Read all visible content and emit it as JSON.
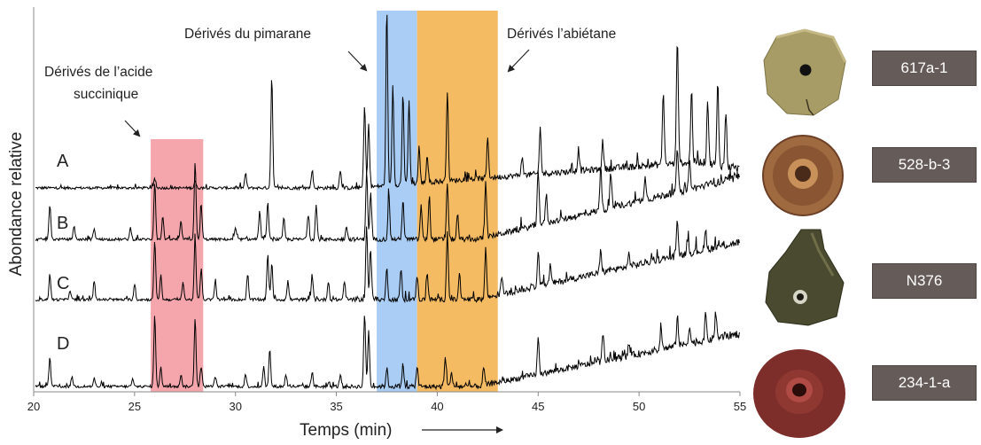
{
  "chart_data": {
    "type": "line",
    "title": "",
    "xlabel": "Temps (min)",
    "ylabel": "Abondance relative",
    "xlim": [
      20,
      55
    ],
    "x_ticks": [
      20,
      25,
      30,
      35,
      40,
      45,
      50,
      55
    ],
    "x_tick_labels": [
      "20",
      "25",
      "30",
      "35",
      "40",
      "45",
      "50",
      "55"
    ],
    "grid": false,
    "traces": [
      {
        "name": "A",
        "peaks": [
          [
            26.0,
            0.05
          ],
          [
            28.0,
            0.04
          ],
          [
            30.5,
            0.08
          ],
          [
            31.8,
            0.62
          ],
          [
            33.8,
            0.1
          ],
          [
            35.2,
            0.1
          ],
          [
            36.4,
            0.45
          ],
          [
            36.6,
            0.35
          ],
          [
            37.5,
            0.95
          ],
          [
            37.8,
            0.55
          ],
          [
            38.3,
            0.5
          ],
          [
            38.6,
            0.45
          ],
          [
            39.1,
            0.2
          ],
          [
            39.5,
            0.15
          ],
          [
            40.5,
            0.5
          ],
          [
            42.5,
            0.22
          ],
          [
            44.2,
            0.1
          ],
          [
            45.1,
            0.25
          ],
          [
            47.0,
            0.12
          ],
          [
            48.2,
            0.15
          ],
          [
            51.2,
            0.4
          ],
          [
            51.9,
            0.7
          ],
          [
            52.6,
            0.4
          ],
          [
            53.4,
            0.35
          ],
          [
            53.9,
            0.45
          ],
          [
            54.3,
            0.3
          ]
        ]
      },
      {
        "name": "B",
        "peaks": [
          [
            20.8,
            0.3
          ],
          [
            22.0,
            0.12
          ],
          [
            23.0,
            0.1
          ],
          [
            24.8,
            0.1
          ],
          [
            26.0,
            0.5
          ],
          [
            26.4,
            0.2
          ],
          [
            27.3,
            0.15
          ],
          [
            28.0,
            0.68
          ],
          [
            28.3,
            0.3
          ],
          [
            30.0,
            0.1
          ],
          [
            31.2,
            0.25
          ],
          [
            31.6,
            0.32
          ],
          [
            32.4,
            0.18
          ],
          [
            33.6,
            0.22
          ],
          [
            34.0,
            0.3
          ],
          [
            35.5,
            0.12
          ],
          [
            36.5,
            0.6
          ],
          [
            36.7,
            0.4
          ],
          [
            37.6,
            0.4
          ],
          [
            38.3,
            0.35
          ],
          [
            39.2,
            0.3
          ],
          [
            39.6,
            0.35
          ],
          [
            40.5,
            0.5
          ],
          [
            41.0,
            0.2
          ],
          [
            42.4,
            0.5
          ],
          [
            45.0,
            0.5
          ],
          [
            45.4,
            0.25
          ],
          [
            48.1,
            0.4
          ],
          [
            48.6,
            0.3
          ],
          [
            50.3,
            0.22
          ],
          [
            51.9,
            0.38
          ],
          [
            52.5,
            0.25
          ]
        ]
      },
      {
        "name": "C",
        "peaks": [
          [
            20.8,
            0.2
          ],
          [
            21.8,
            0.08
          ],
          [
            23.0,
            0.15
          ],
          [
            25.0,
            0.12
          ],
          [
            26.0,
            0.48
          ],
          [
            26.3,
            0.2
          ],
          [
            27.4,
            0.15
          ],
          [
            28.0,
            0.5
          ],
          [
            28.3,
            0.25
          ],
          [
            29.0,
            0.15
          ],
          [
            30.6,
            0.2
          ],
          [
            31.6,
            0.36
          ],
          [
            31.8,
            0.3
          ],
          [
            32.6,
            0.15
          ],
          [
            33.8,
            0.2
          ],
          [
            34.6,
            0.15
          ],
          [
            35.4,
            0.15
          ],
          [
            36.5,
            0.6
          ],
          [
            36.7,
            0.4
          ],
          [
            37.5,
            0.25
          ],
          [
            38.2,
            0.25
          ],
          [
            39.0,
            0.2
          ],
          [
            39.5,
            0.22
          ],
          [
            40.5,
            0.55
          ],
          [
            41.1,
            0.2
          ],
          [
            42.4,
            0.4
          ],
          [
            43.2,
            0.15
          ],
          [
            45.0,
            0.3
          ],
          [
            45.6,
            0.15
          ],
          [
            48.1,
            0.18
          ],
          [
            49.5,
            0.1
          ],
          [
            51.9,
            0.3
          ],
          [
            52.4,
            0.12
          ],
          [
            53.3,
            0.15
          ]
        ]
      },
      {
        "name": "D",
        "peaks": [
          [
            20.8,
            0.28
          ],
          [
            21.9,
            0.1
          ],
          [
            23.0,
            0.08
          ],
          [
            24.9,
            0.07
          ],
          [
            26.0,
            0.7
          ],
          [
            26.3,
            0.2
          ],
          [
            27.3,
            0.12
          ],
          [
            28.0,
            0.68
          ],
          [
            28.3,
            0.2
          ],
          [
            29.0,
            0.1
          ],
          [
            30.5,
            0.12
          ],
          [
            31.4,
            0.2
          ],
          [
            31.7,
            0.36
          ],
          [
            32.5,
            0.12
          ],
          [
            33.8,
            0.15
          ],
          [
            35.2,
            0.12
          ],
          [
            36.4,
            0.72
          ],
          [
            36.6,
            0.55
          ],
          [
            37.5,
            0.18
          ],
          [
            38.3,
            0.22
          ],
          [
            39.0,
            0.2
          ],
          [
            40.4,
            0.28
          ],
          [
            40.7,
            0.15
          ],
          [
            42.3,
            0.18
          ],
          [
            45.0,
            0.35
          ],
          [
            48.2,
            0.28
          ],
          [
            49.5,
            0.12
          ],
          [
            51.1,
            0.18
          ],
          [
            51.9,
            0.3
          ],
          [
            52.5,
            0.18
          ],
          [
            53.3,
            0.25
          ],
          [
            53.8,
            0.25
          ]
        ]
      }
    ],
    "highlighted_regions": [
      {
        "x": [
          25.8,
          28.4
        ],
        "color": "#f4a6ac",
        "annotation": "Dérivés de l'acide succinique"
      },
      {
        "x": [
          37.0,
          39.0
        ],
        "color": "#a9cdf4",
        "annotation": "Dérivés du pimarane"
      },
      {
        "x": [
          39.0,
          43.0
        ],
        "color": "#f5bb63",
        "annotation": "Dérivés l'abiétane"
      }
    ]
  },
  "annotations": {
    "succinique_line1": "Dérivés de l’acide",
    "succinique_line2": "succinique",
    "pimarane": "Dérivés du pimarane",
    "abietane": "Dérivés l’abiétane"
  },
  "samples": [
    {
      "label": "617a-1",
      "color": "#a79c66"
    },
    {
      "label": "528-b-3",
      "color": "#a06a40"
    },
    {
      "label": "N376",
      "color": "#4a4a30"
    },
    {
      "label": "234-1-a",
      "color": "#7e2e2a"
    }
  ]
}
